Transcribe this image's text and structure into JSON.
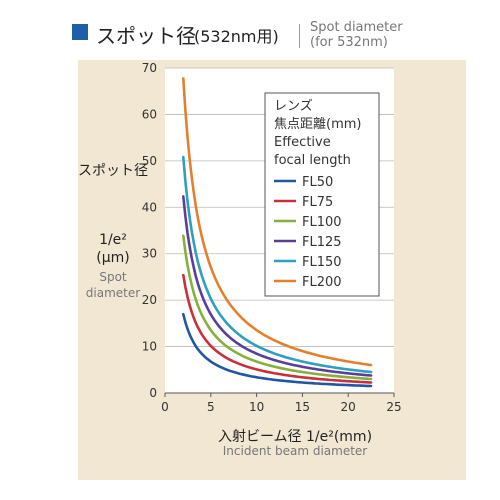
{
  "header": {
    "title_jp": "スポット径",
    "title_jp_sub": "(532nm用)",
    "title_en_line1": "Spot diameter",
    "title_en_line2": "(for 532nm)"
  },
  "colors": {
    "title_square": "#1f5fa8",
    "panel_bg": "#f2e7d3"
  },
  "chart_data": {
    "type": "line",
    "title": "スポット径(532nm用) Spot diameter (for 532nm)",
    "ylabel_lines": [
      "スポット径",
      "1/e²",
      "(μm)"
    ],
    "ylabel_en_lines": [
      "Spot",
      "diameter"
    ],
    "xlabel": "入射ビーム径 1/e²(mm)",
    "xlabel_en": "Incident beam diameter",
    "xlim": [
      0,
      25
    ],
    "ylim": [
      0,
      70
    ],
    "xticks": [
      0,
      5,
      10,
      15,
      20,
      25
    ],
    "yticks": [
      0,
      10,
      20,
      30,
      40,
      50,
      60,
      70
    ],
    "grid": "horizontal",
    "legend_title_lines": [
      "レンズ",
      "焦点距離(mm)",
      "Effective",
      "focal length"
    ],
    "legend_position": "top-right",
    "x_range": [
      2,
      22.5
    ],
    "series": [
      {
        "name": "FL50",
        "color": "#1f57a4",
        "k": 33.9
      },
      {
        "name": "FL75",
        "color": "#c9303a",
        "k": 50.8
      },
      {
        "name": "FL100",
        "color": "#86b03c",
        "k": 67.7
      },
      {
        "name": "FL125",
        "color": "#5a3f9a",
        "k": 84.7
      },
      {
        "name": "FL150",
        "color": "#2f9fc0",
        "k": 101.6
      },
      {
        "name": "FL200",
        "color": "#e3802e",
        "k": 135.5
      }
    ]
  }
}
